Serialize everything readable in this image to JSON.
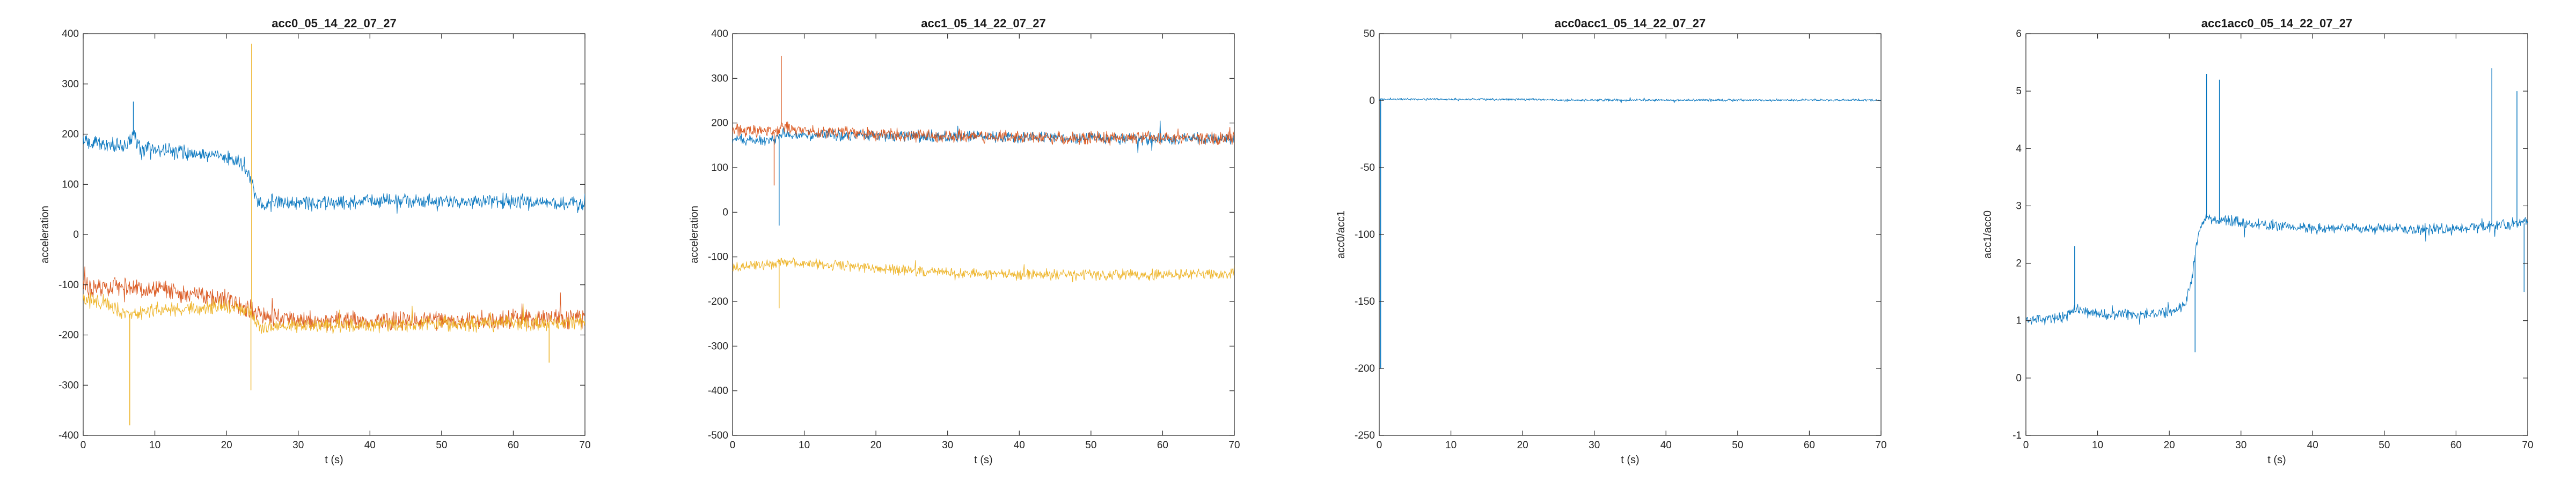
{
  "colors": {
    "series1": "#0072bd",
    "series2": "#d95319",
    "series3": "#edb120",
    "axis": "#262626",
    "background": "#ffffff"
  },
  "chart_data": [
    {
      "type": "line",
      "title": "acc0_05_14_22_07_27",
      "xlabel": "t (s)",
      "ylabel": "acceleration",
      "xlim": [
        0,
        70
      ],
      "ylim": [
        -400,
        400
      ],
      "xticks": [
        0,
        10,
        20,
        30,
        40,
        50,
        60,
        70
      ],
      "yticks": [
        -400,
        -300,
        -200,
        -100,
        0,
        100,
        200,
        300,
        400
      ],
      "grid": false,
      "series": [
        {
          "color": "#0072bd",
          "noise": 14,
          "x": [
            0,
            2,
            4,
            6,
            7,
            8,
            10,
            14,
            18,
            21,
            22.5,
            23.5,
            24,
            25,
            30,
            40,
            50,
            60,
            70
          ],
          "values": [
            185,
            182,
            178,
            175,
            200,
            172,
            168,
            165,
            160,
            152,
            135,
            110,
            70,
            62,
            63,
            66,
            67,
            66,
            62
          ],
          "spikes": [
            {
              "x": 7,
              "y": 265
            }
          ]
        },
        {
          "color": "#d95319",
          "noise": 18,
          "x": [
            0,
            5,
            10,
            15,
            20,
            23,
            25,
            30,
            40,
            50,
            60,
            70
          ],
          "values": [
            -105,
            -100,
            -110,
            -118,
            -130,
            -148,
            -165,
            -170,
            -172,
            -170,
            -168,
            -168
          ],
          "spikes": []
        },
        {
          "color": "#edb120",
          "noise": 14,
          "x": [
            0,
            3,
            6,
            10,
            15,
            20,
            23,
            25,
            30,
            40,
            50,
            60,
            70
          ],
          "values": [
            -130,
            -135,
            -160,
            -150,
            -148,
            -142,
            -150,
            -185,
            -182,
            -180,
            -178,
            -176,
            -174
          ],
          "spikes": [
            {
              "x": 6.5,
              "y": -380
            },
            {
              "x": 23.5,
              "y": 380
            },
            {
              "x": 23.4,
              "y": -310
            },
            {
              "x": 65,
              "y": -255
            }
          ]
        }
      ]
    },
    {
      "type": "line",
      "title": "acc1_05_14_22_07_27",
      "xlabel": "t (s)",
      "ylabel": "acceleration",
      "xlim": [
        0,
        70
      ],
      "ylim": [
        -500,
        400
      ],
      "xticks": [
        0,
        10,
        20,
        30,
        40,
        50,
        60,
        70
      ],
      "yticks": [
        -500,
        -400,
        -300,
        -200,
        -100,
        0,
        100,
        200,
        300,
        400
      ],
      "grid": false,
      "series": [
        {
          "color": "#0072bd",
          "noise": 12,
          "x": [
            0,
            3,
            6,
            7,
            8,
            10,
            20,
            30,
            40,
            50,
            60,
            70
          ],
          "values": [
            160,
            162,
            165,
            175,
            172,
            175,
            172,
            170,
            168,
            166,
            165,
            165
          ],
          "spikes": [
            {
              "x": 6.5,
              "y": -30
            }
          ]
        },
        {
          "color": "#d95319",
          "noise": 13,
          "x": [
            0,
            3,
            6,
            7,
            8,
            10,
            20,
            30,
            40,
            50,
            60,
            70
          ],
          "values": [
            185,
            182,
            180,
            195,
            190,
            182,
            175,
            170,
            168,
            167,
            166,
            166
          ],
          "spikes": [
            {
              "x": 6.8,
              "y": 350
            },
            {
              "x": 5.8,
              "y": 60
            }
          ]
        },
        {
          "color": "#edb120",
          "noise": 11,
          "x": [
            0,
            3,
            6,
            8,
            10,
            20,
            30,
            40,
            50,
            60,
            70
          ],
          "values": [
            -125,
            -120,
            -115,
            -110,
            -115,
            -125,
            -135,
            -140,
            -140,
            -140,
            -138
          ],
          "spikes": [
            {
              "x": 6.5,
              "y": -215
            }
          ]
        }
      ]
    },
    {
      "type": "line",
      "title": "acc0acc1_05_14_22_07_27",
      "xlabel": "t (s)",
      "ylabel": "acc0/acc1",
      "xlim": [
        0,
        70
      ],
      "ylim": [
        -250,
        50
      ],
      "xticks": [
        0,
        10,
        20,
        30,
        40,
        50,
        60,
        70
      ],
      "yticks": [
        -250,
        -200,
        -150,
        -100,
        -50,
        0,
        50
      ],
      "grid": false,
      "series": [
        {
          "color": "#0072bd",
          "noise": 0.8,
          "x": [
            0,
            5,
            10,
            20,
            23,
            25,
            30,
            40,
            50,
            60,
            70
          ],
          "values": [
            1.1,
            1.1,
            1.0,
            0.9,
            0.8,
            0.4,
            0.4,
            0.4,
            0.4,
            0.4,
            0.4
          ],
          "spikes": [
            {
              "x": 0.2,
              "y": -200
            }
          ]
        }
      ]
    },
    {
      "type": "line",
      "title": "acc1acc0_05_14_22_07_27",
      "xlabel": "t (s)",
      "ylabel": "acc1/acc0",
      "xlim": [
        0,
        70
      ],
      "ylim": [
        -1,
        6
      ],
      "xticks": [
        0,
        10,
        20,
        30,
        40,
        50,
        60,
        70
      ],
      "yticks": [
        -1,
        0,
        1,
        2,
        3,
        4,
        5,
        6
      ],
      "grid": false,
      "series": [
        {
          "color": "#0072bd",
          "noise": 0.09,
          "x": [
            0,
            5,
            7,
            10,
            15,
            20,
            22,
            23,
            24,
            25,
            30,
            40,
            50,
            60,
            70
          ],
          "values": [
            1.0,
            1.05,
            1.2,
            1.1,
            1.1,
            1.15,
            1.25,
            1.6,
            2.5,
            2.8,
            2.7,
            2.6,
            2.6,
            2.6,
            2.7
          ],
          "spikes": [
            {
              "x": 6.8,
              "y": 2.3
            },
            {
              "x": 23.6,
              "y": 0.45
            },
            {
              "x": 25.2,
              "y": 5.3
            },
            {
              "x": 27,
              "y": 5.2
            },
            {
              "x": 65,
              "y": 5.4
            },
            {
              "x": 68.5,
              "y": 5.0
            },
            {
              "x": 69.5,
              "y": 1.5
            }
          ]
        }
      ]
    }
  ]
}
